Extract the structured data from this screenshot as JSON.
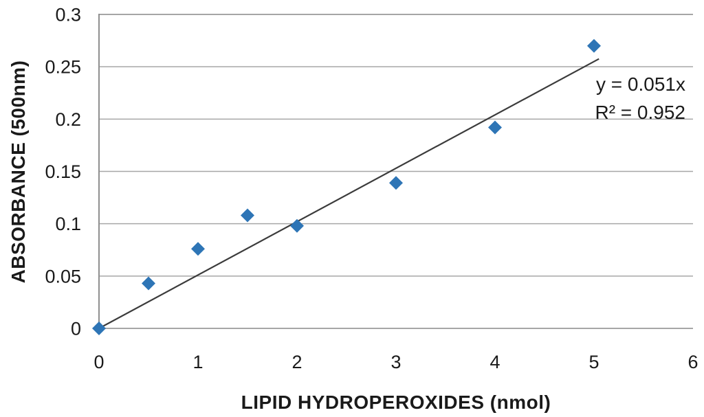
{
  "chart_data": {
    "type": "scatter",
    "title": "",
    "xlabel": "LIPID HYDROPEROXIDES (nmol)",
    "ylabel": "ABSORBANCE (500nm)",
    "xlim": [
      0,
      6
    ],
    "ylim": [
      0,
      0.3
    ],
    "xticks": [
      0,
      1,
      2,
      3,
      4,
      5,
      6
    ],
    "xtick_labels": [
      "0",
      "1",
      "2",
      "3",
      "4",
      "5",
      "6"
    ],
    "yticks": [
      0,
      0.05,
      0.1,
      0.15,
      0.2,
      0.25,
      0.3
    ],
    "ytick_labels": [
      "0",
      "0.05",
      "0.1",
      "0.15",
      "0.2",
      "0.25",
      "0.3"
    ],
    "grid": true,
    "points": [
      {
        "x": 0,
        "y": 0.0
      },
      {
        "x": 0.5,
        "y": 0.043
      },
      {
        "x": 1,
        "y": 0.076
      },
      {
        "x": 1.5,
        "y": 0.108
      },
      {
        "x": 2,
        "y": 0.098
      },
      {
        "x": 3,
        "y": 0.139
      },
      {
        "x": 4,
        "y": 0.192
      },
      {
        "x": 5,
        "y": 0.27
      }
    ],
    "trendline": {
      "slope": 0.051,
      "intercept": 0,
      "x_start": 0,
      "x_end": 5.05,
      "equation_label": "y = 0.051x",
      "r2_label": "R² = 0.952"
    },
    "marker": {
      "shape": "diamond",
      "color": "#2e75b6",
      "half_diagonal": 10
    },
    "colors": {
      "gridline": "#a6a6a6",
      "axis": "#8f8f8f",
      "trendline": "#3b3b3b",
      "text": "#1a1a1a",
      "background": "#ffffff"
    },
    "legend": null
  }
}
